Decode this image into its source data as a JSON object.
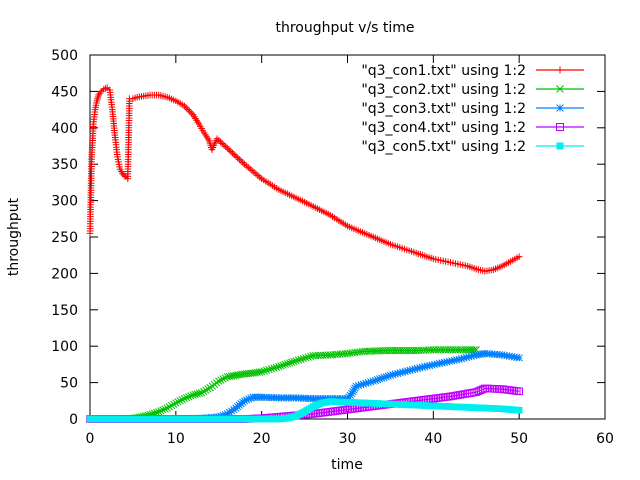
{
  "chart_data": {
    "type": "line",
    "title": "throughput v/s time",
    "xlabel": "time",
    "ylabel": "throughput",
    "xlim": [
      0,
      60
    ],
    "ylim": [
      0,
      500
    ],
    "xticks": [
      0,
      10,
      20,
      30,
      40,
      50,
      60
    ],
    "yticks": [
      0,
      50,
      100,
      150,
      200,
      250,
      300,
      350,
      400,
      450,
      500
    ],
    "legend_position": "top-right",
    "grid": false,
    "series": [
      {
        "name": "\"q3_con1.txt\" using 1:2",
        "color": "#ff0000",
        "marker": "plus",
        "x": [
          0.0,
          0.2,
          0.4,
          0.6,
          0.8,
          1.0,
          1.3,
          1.6,
          2.0,
          2.3,
          2.6,
          2.9,
          3.2,
          3.5,
          3.8,
          4.1,
          4.4,
          4.6,
          5.0,
          5.5,
          6.0,
          7.0,
          8.0,
          9.0,
          10.0,
          11.0,
          12.0,
          12.7,
          13.3,
          13.9,
          14.2,
          14.8,
          16.0,
          18.0,
          20.0,
          22.0,
          25.0,
          28.0,
          30.0,
          32.0,
          35.0,
          38.0,
          40.0,
          42.0,
          44.0,
          45.0,
          46.0,
          47.0,
          48.0,
          50.0
        ],
        "y": [
          255,
          360,
          405,
          425,
          437,
          445,
          450,
          453,
          455,
          452,
          425,
          390,
          360,
          343,
          337,
          333,
          330,
          440,
          440,
          442,
          443,
          445,
          445,
          442,
          437,
          430,
          418,
          405,
          393,
          382,
          370,
          385,
          372,
          350,
          330,
          315,
          298,
          280,
          265,
          255,
          240,
          228,
          220,
          215,
          210,
          206,
          203,
          205,
          210,
          223
        ]
      },
      {
        "name": "\"q3_con2.txt\" using 1:2",
        "color": "#00c000",
        "marker": "cross",
        "x": [
          0,
          2,
          4,
          5,
          6,
          7,
          8,
          9,
          10,
          11,
          12,
          13,
          14,
          15,
          16,
          17,
          18,
          19,
          20,
          22,
          24,
          26,
          28,
          30,
          32,
          35,
          38,
          40,
          42,
          44,
          45
        ],
        "y": [
          0,
          0,
          0,
          1,
          3,
          6,
          10,
          15,
          22,
          28,
          33,
          36,
          43,
          52,
          58,
          60,
          62,
          63,
          65,
          72,
          80,
          87,
          88,
          90,
          93,
          94,
          94,
          95,
          95,
          95,
          95
        ]
      },
      {
        "name": "\"q3_con3.txt\" using 1:2",
        "color": "#0080ff",
        "marker": "star",
        "x": [
          0,
          5,
          10,
          13,
          15,
          16,
          17,
          18,
          19,
          20,
          22,
          24,
          26,
          28,
          30,
          30.5,
          31,
          33,
          35,
          37,
          39,
          41,
          43,
          45,
          46,
          48,
          50
        ],
        "y": [
          0,
          0,
          0,
          1,
          3,
          7,
          15,
          25,
          30,
          30,
          29,
          29,
          28,
          28,
          28,
          35,
          45,
          52,
          60,
          66,
          72,
          77,
          82,
          88,
          90,
          88,
          84
        ]
      },
      {
        "name": "\"q3_con4.txt\" using 1:2",
        "color": "#c000ff",
        "marker": "square-open",
        "x": [
          0,
          10,
          18,
          20,
          22,
          24,
          26,
          28,
          30,
          32,
          34,
          36,
          38,
          40,
          42,
          44,
          45,
          46,
          48,
          50
        ],
        "y": [
          0,
          0,
          0,
          1,
          3,
          5,
          7,
          10,
          13,
          16,
          19,
          22,
          25,
          28,
          31,
          35,
          37,
          42,
          41,
          38
        ]
      },
      {
        "name": "\"q3_con5.txt\" using 1:2",
        "color": "#00eeee",
        "marker": "square-filled",
        "x": [
          0,
          10,
          20,
          22,
          23,
          24,
          25,
          26,
          27,
          28,
          30,
          32,
          34,
          36,
          38,
          40,
          42,
          44,
          46,
          48,
          50
        ],
        "y": [
          0,
          0,
          0,
          0,
          1,
          4,
          10,
          17,
          22,
          24,
          23,
          22,
          21,
          20,
          19,
          18,
          17,
          16,
          15,
          14,
          12
        ]
      }
    ]
  }
}
